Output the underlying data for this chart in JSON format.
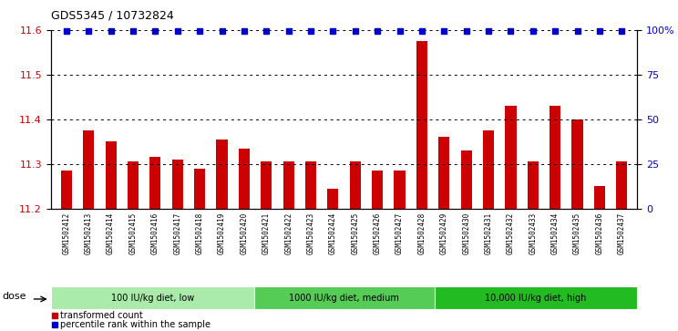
{
  "title": "GDS5345 / 10732824",
  "samples": [
    "GSM1502412",
    "GSM1502413",
    "GSM1502414",
    "GSM1502415",
    "GSM1502416",
    "GSM1502417",
    "GSM1502418",
    "GSM1502419",
    "GSM1502420",
    "GSM1502421",
    "GSM1502422",
    "GSM1502423",
    "GSM1502424",
    "GSM1502425",
    "GSM1502426",
    "GSM1502427",
    "GSM1502428",
    "GSM1502429",
    "GSM1502430",
    "GSM1502431",
    "GSM1502432",
    "GSM1502433",
    "GSM1502434",
    "GSM1502435",
    "GSM1502436",
    "GSM1502437"
  ],
  "bar_values": [
    11.285,
    11.375,
    11.35,
    11.305,
    11.315,
    11.31,
    11.29,
    11.355,
    11.335,
    11.305,
    11.305,
    11.305,
    11.245,
    11.305,
    11.285,
    11.285,
    11.575,
    11.36,
    11.33,
    11.375,
    11.43,
    11.305,
    11.43,
    11.4,
    11.25,
    11.305
  ],
  "bar_color": "#cc0000",
  "dot_color": "#0000cc",
  "ylim_left": [
    11.2,
    11.6
  ],
  "yticks_left": [
    11.2,
    11.3,
    11.4,
    11.5,
    11.6
  ],
  "ylim_right": [
    0,
    100
  ],
  "yticks_right": [
    0,
    25,
    50,
    75,
    100
  ],
  "yticklabels_right": [
    "0",
    "25",
    "50",
    "75",
    "100%"
  ],
  "grid_values": [
    11.3,
    11.4,
    11.5
  ],
  "dose_groups": [
    {
      "label": "100 IU/kg diet, low",
      "start": 0,
      "end": 9,
      "color": "#aaeaaa"
    },
    {
      "label": "1000 IU/kg diet, medium",
      "start": 9,
      "end": 17,
      "color": "#55cc55"
    },
    {
      "label": "10,000 IU/kg diet, high",
      "start": 17,
      "end": 26,
      "color": "#22bb22"
    }
  ],
  "dose_label": "dose",
  "legend_items": [
    {
      "label": "transformed count",
      "color": "#cc0000"
    },
    {
      "label": "percentile rank within the sample",
      "color": "#0000cc"
    }
  ],
  "plot_bg_color": "#ffffff",
  "gray_band_color": "#d0d0d0",
  "figsize": [
    7.44,
    3.63
  ],
  "dpi": 100
}
